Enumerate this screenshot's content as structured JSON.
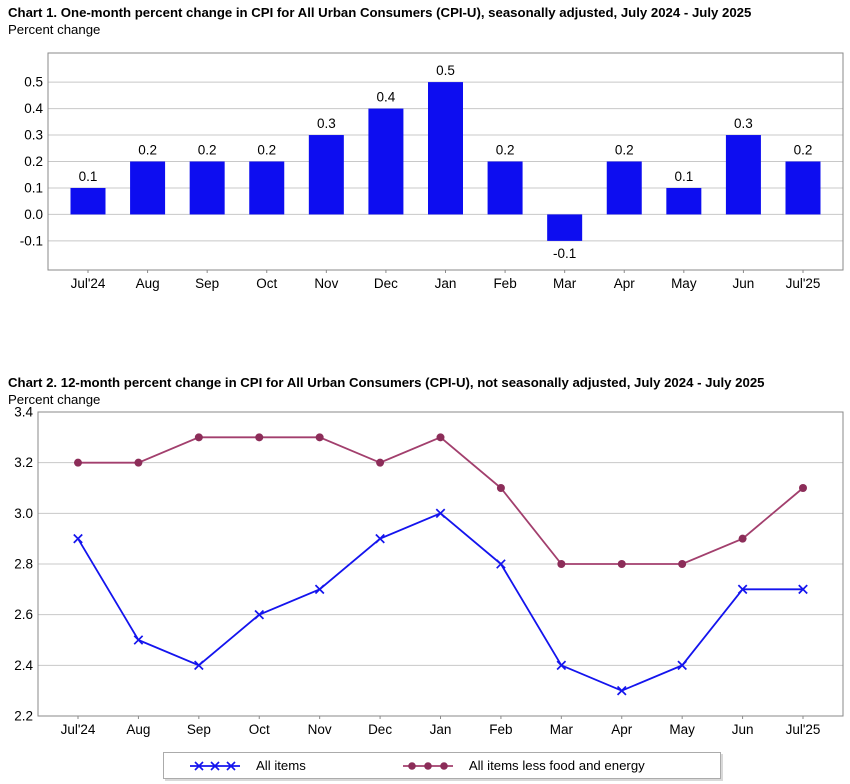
{
  "chart_data": [
    {
      "type": "bar",
      "title": "Chart 1. One-month percent change in CPI for All Urban Consumers (CPI-U), seasonally adjusted, July 2024 - July 2025",
      "subtitle": "Percent change",
      "categories": [
        "Jul'24",
        "Aug",
        "Sep",
        "Oct",
        "Nov",
        "Dec",
        "Jan",
        "Feb",
        "Mar",
        "Apr",
        "May",
        "Jun",
        "Jul'25"
      ],
      "values": [
        0.1,
        0.2,
        0.2,
        0.2,
        0.3,
        0.4,
        0.5,
        0.2,
        -0.1,
        0.2,
        0.1,
        0.3,
        0.2
      ],
      "data_labels": true,
      "bar_color": "#0d0df0",
      "yticks": [
        -0.1,
        0.0,
        0.1,
        0.2,
        0.3,
        0.4,
        0.5
      ],
      "ylim": [
        -0.21,
        0.61
      ],
      "grid": true,
      "grid_color": "#c8c8c8",
      "frame_color": "#8a8a8a",
      "xlabel": "",
      "ylabel": "Percent change"
    },
    {
      "type": "line",
      "title": "Chart 2. 12-month percent change in CPI for All Urban Consumers (CPI-U), not seasonally adjusted, July 2024 - July 2025",
      "subtitle": "Percent change",
      "categories": [
        "Jul'24",
        "Aug",
        "Sep",
        "Oct",
        "Nov",
        "Dec",
        "Jan",
        "Feb",
        "Mar",
        "Apr",
        "May",
        "Jun",
        "Jul'25"
      ],
      "series": [
        {
          "name": "All items",
          "values": [
            2.9,
            2.5,
            2.4,
            2.6,
            2.7,
            2.9,
            3.0,
            2.8,
            2.4,
            2.3,
            2.4,
            2.7,
            2.7
          ],
          "color": "#1414ee",
          "marker": "x"
        },
        {
          "name": "All items less food and energy",
          "values": [
            3.2,
            3.2,
            3.3,
            3.3,
            3.3,
            3.2,
            3.3,
            3.1,
            2.8,
            2.8,
            2.8,
            2.9,
            3.1
          ],
          "color": "#a23f6d",
          "marker": "circle",
          "marker_fill": "#8c2d59"
        }
      ],
      "yticks": [
        2.2,
        2.4,
        2.6,
        2.8,
        3.0,
        3.2,
        3.4
      ],
      "ylim": [
        2.2,
        3.4
      ],
      "grid": true,
      "grid_color": "#c8c8c8",
      "frame_color": "#8a8a8a",
      "legend_position": "bottom",
      "xlabel": "",
      "ylabel": "Percent change"
    }
  ]
}
